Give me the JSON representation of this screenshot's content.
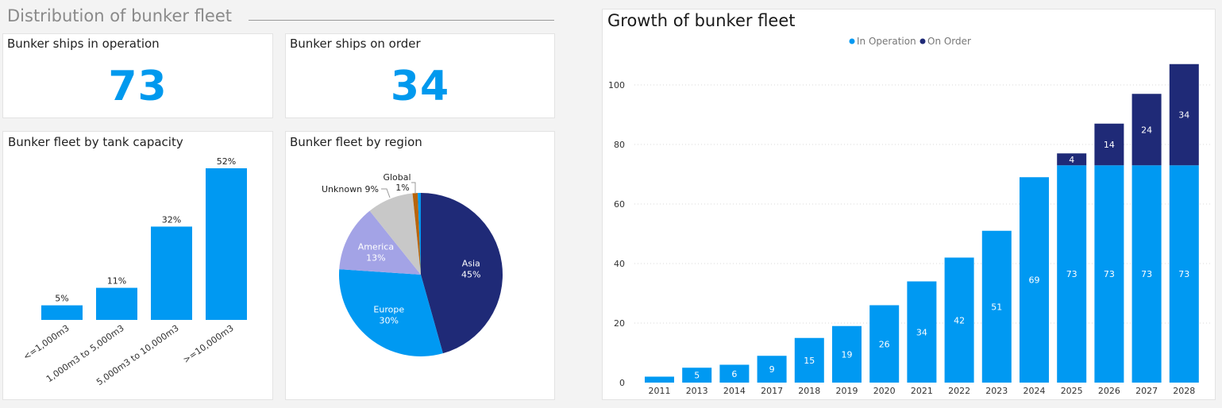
{
  "header": {
    "title": "Distribution of bunker fleet"
  },
  "kpis": {
    "operation": {
      "label": "Bunker ships in operation",
      "value": "73"
    },
    "order": {
      "label": "Bunker ships on order",
      "value": "34"
    }
  },
  "colors": {
    "operation": "#0099f2",
    "order": "#1f2a77",
    "asia": "#1f2a77",
    "europe": "#0099f2",
    "america": "#a3a3e6",
    "unknown": "#c8c8c8",
    "global": "#b8650c",
    "tiny": "#0099f2"
  },
  "chart_data": [
    {
      "type": "bar",
      "title": "Bunker fleet by tank capacity",
      "categories": [
        "<=1,000m3",
        "1,000m3 to 5,000m3",
        "5,000m3 to 10,000m3",
        ">=10,000m3"
      ],
      "values": [
        5,
        11,
        32,
        52
      ],
      "value_labels": [
        "5%",
        "11%",
        "32%",
        "52%"
      ],
      "unit": "%"
    },
    {
      "type": "pie",
      "title": "Bunker fleet by region",
      "slices": [
        {
          "name": "Asia",
          "value": 45,
          "label": "45%"
        },
        {
          "name": "Europe",
          "value": 30,
          "label": "30%"
        },
        {
          "name": "America",
          "value": 13,
          "label": "13%"
        },
        {
          "name": "Unknown",
          "value": 9,
          "label": "9%"
        },
        {
          "name": "Global",
          "value": 1,
          "label": "1%"
        },
        {
          "name": "",
          "value": 0.6,
          "label": ""
        }
      ]
    },
    {
      "type": "bar",
      "stacked": true,
      "title": "Growth of bunker fleet",
      "categories": [
        "2011",
        "2013",
        "2014",
        "2017",
        "2018",
        "2019",
        "2020",
        "2021",
        "2022",
        "2023",
        "2024",
        "2025",
        "2026",
        "2027",
        "2028"
      ],
      "series": [
        {
          "name": "In Operation",
          "values": [
            2,
            5,
            6,
            9,
            15,
            19,
            26,
            34,
            42,
            51,
            69,
            73,
            73,
            73,
            73
          ],
          "labels": [
            "",
            "5",
            "6",
            "9",
            "15",
            "19",
            "26",
            "34",
            "42",
            "51",
            "69",
            "73",
            "73",
            "73",
            "73"
          ]
        },
        {
          "name": "On Order",
          "values": [
            0,
            0,
            0,
            0,
            0,
            0,
            0,
            0,
            0,
            0,
            0,
            4,
            14,
            24,
            34
          ],
          "labels": [
            "",
            "",
            "",
            "",
            "",
            "",
            "",
            "",
            "",
            "",
            "",
            "4",
            "14",
            "24",
            "34"
          ]
        }
      ],
      "yticks": [
        0,
        20,
        40,
        60,
        80,
        100
      ],
      "ylim": [
        0,
        108
      ],
      "legend": "top-center",
      "grid": true
    }
  ]
}
